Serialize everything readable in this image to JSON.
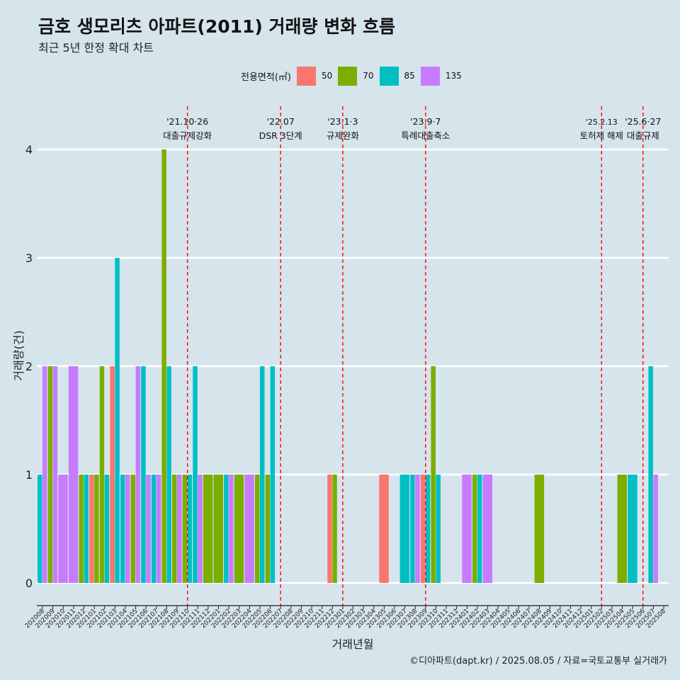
{
  "title": "금호 생모리츠 아파트(2011) 거래량 변화 흐름",
  "subtitle": "최근 5년 한정 확대 차트",
  "caption": "©디아파트(dapt.kr) / 2025.08.05 / 자료=국토교통부 실거래가",
  "legend": {
    "title": "전용면적(㎡)",
    "items": [
      {
        "label": "50",
        "color": "#F8766D"
      },
      {
        "label": "70",
        "color": "#7CAE00"
      },
      {
        "label": "85",
        "color": "#00BFC4"
      },
      {
        "label": "135",
        "color": "#C77CFF"
      }
    ]
  },
  "chart_data": {
    "type": "bar",
    "xlabel": "거래년월",
    "ylabel": "거래량(건)",
    "ylim": [
      0,
      4
    ],
    "yticks": [
      0,
      1,
      2,
      3,
      4
    ],
    "grid": true,
    "categories": [
      "202008",
      "202009",
      "202010",
      "202011",
      "202012",
      "202101",
      "202102",
      "202103",
      "202104",
      "202105",
      "202106",
      "202107",
      "202108",
      "202109",
      "202110",
      "202111",
      "202112",
      "202201",
      "202202",
      "202203",
      "202204",
      "202205",
      "202206",
      "202207",
      "202208",
      "202209",
      "202210",
      "202211",
      "202212",
      "202301",
      "202302",
      "202303",
      "202304",
      "202305",
      "202306",
      "202307",
      "202308",
      "202309",
      "202310",
      "202311",
      "202312",
      "202401",
      "202402",
      "202403",
      "202404",
      "202405",
      "202406",
      "202407",
      "202408",
      "202409",
      "202410",
      "202411",
      "202412",
      "202501",
      "202502",
      "202503",
      "202504",
      "202505",
      "202506",
      "202507",
      "202508"
    ],
    "bars": [
      {
        "month": "202008",
        "area": "85",
        "value": 1
      },
      {
        "month": "202008",
        "area": "135",
        "value": 2
      },
      {
        "month": "202009",
        "area": "70",
        "value": 2
      },
      {
        "month": "202009",
        "area": "135",
        "value": 2
      },
      {
        "month": "202010",
        "area": "135",
        "value": 1
      },
      {
        "month": "202011",
        "area": "135",
        "value": 2
      },
      {
        "month": "202012",
        "area": "70",
        "value": 1
      },
      {
        "month": "202012",
        "area": "85",
        "value": 1
      },
      {
        "month": "202101",
        "area": "50",
        "value": 1
      },
      {
        "month": "202101",
        "area": "70",
        "value": 1
      },
      {
        "month": "202102",
        "area": "70",
        "value": 2
      },
      {
        "month": "202102",
        "area": "85",
        "value": 1
      },
      {
        "month": "202103",
        "area": "50",
        "value": 2
      },
      {
        "month": "202103",
        "area": "85",
        "value": 3
      },
      {
        "month": "202104",
        "area": "85",
        "value": 1
      },
      {
        "month": "202104",
        "area": "135",
        "value": 1
      },
      {
        "month": "202105",
        "area": "70",
        "value": 1
      },
      {
        "month": "202105",
        "area": "135",
        "value": 2
      },
      {
        "month": "202106",
        "area": "85",
        "value": 2
      },
      {
        "month": "202106",
        "area": "135",
        "value": 1
      },
      {
        "month": "202107",
        "area": "85",
        "value": 1
      },
      {
        "month": "202107",
        "area": "135",
        "value": 1
      },
      {
        "month": "202108",
        "area": "70",
        "value": 4
      },
      {
        "month": "202108",
        "area": "85",
        "value": 2
      },
      {
        "month": "202109",
        "area": "70",
        "value": 1
      },
      {
        "month": "202109",
        "area": "135",
        "value": 1
      },
      {
        "month": "202110",
        "area": "70",
        "value": 1
      },
      {
        "month": "202110",
        "area": "85",
        "value": 1
      },
      {
        "month": "202111",
        "area": "85",
        "value": 2
      },
      {
        "month": "202111",
        "area": "135",
        "value": 1
      },
      {
        "month": "202112",
        "area": "70",
        "value": 1
      },
      {
        "month": "202201",
        "area": "70",
        "value": 1
      },
      {
        "month": "202202",
        "area": "85",
        "value": 1
      },
      {
        "month": "202202",
        "area": "135",
        "value": 1
      },
      {
        "month": "202203",
        "area": "70",
        "value": 1
      },
      {
        "month": "202204",
        "area": "135",
        "value": 1
      },
      {
        "month": "202205",
        "area": "70",
        "value": 1
      },
      {
        "month": "202205",
        "area": "85",
        "value": 2
      },
      {
        "month": "202206",
        "area": "70",
        "value": 1
      },
      {
        "month": "202206",
        "area": "85",
        "value": 2
      },
      {
        "month": "202212",
        "area": "50",
        "value": 1
      },
      {
        "month": "202212",
        "area": "70",
        "value": 1
      },
      {
        "month": "202305",
        "area": "50",
        "value": 1
      },
      {
        "month": "202307",
        "area": "85",
        "value": 1
      },
      {
        "month": "202308",
        "area": "85",
        "value": 1
      },
      {
        "month": "202308",
        "area": "135",
        "value": 1
      },
      {
        "month": "202309",
        "area": "50",
        "value": 1
      },
      {
        "month": "202309",
        "area": "85",
        "value": 1
      },
      {
        "month": "202310",
        "area": "70",
        "value": 2
      },
      {
        "month": "202310",
        "area": "85",
        "value": 1
      },
      {
        "month": "202401",
        "area": "135",
        "value": 1
      },
      {
        "month": "202402",
        "area": "70",
        "value": 1
      },
      {
        "month": "202402",
        "area": "85",
        "value": 1
      },
      {
        "month": "202403",
        "area": "135",
        "value": 1
      },
      {
        "month": "202408",
        "area": "70",
        "value": 1
      },
      {
        "month": "202504",
        "area": "70",
        "value": 1
      },
      {
        "month": "202505",
        "area": "85",
        "value": 1
      },
      {
        "month": "202507",
        "area": "85",
        "value": 2
      },
      {
        "month": "202507",
        "area": "135",
        "value": 1
      }
    ],
    "annotations": [
      {
        "month": "202110",
        "label1": "'21.10·26",
        "label2": "대출규제강화"
      },
      {
        "month": "202207",
        "label1": "'22.07",
        "label2": "DSR 3단계"
      },
      {
        "month": "202301",
        "label1": "'23.1·3",
        "label2": "규제완화"
      },
      {
        "month": "202309",
        "label1": "'23.9·7",
        "label2": "특례대출축소"
      },
      {
        "month": "202502",
        "label1": "'25.2.13",
        "label2": "토허제 해제"
      },
      {
        "month": "202506",
        "label1": "'25.6·27",
        "label2": "대출규제"
      }
    ]
  }
}
